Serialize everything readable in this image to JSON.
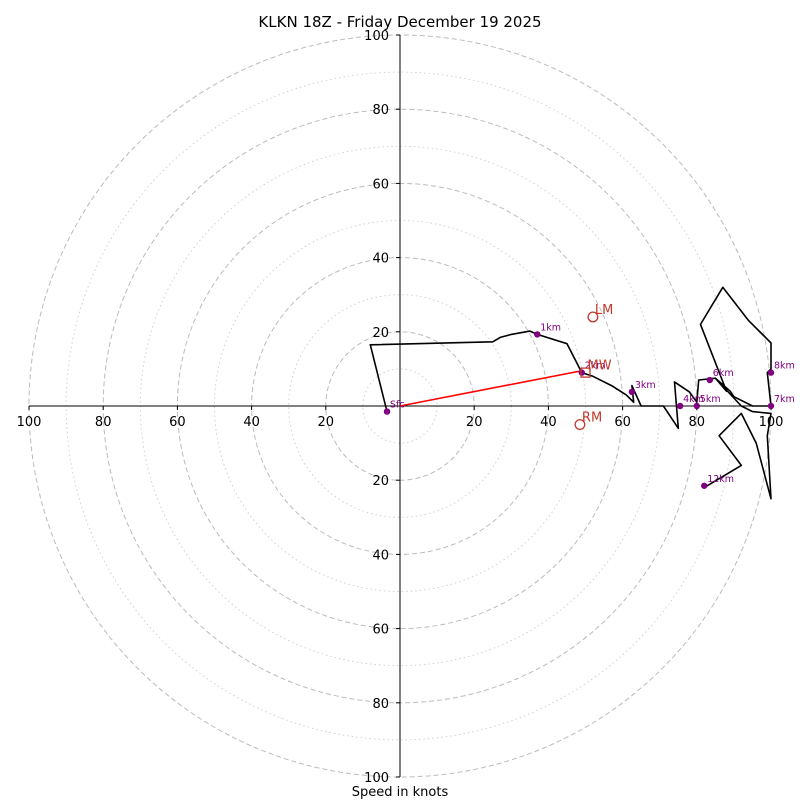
{
  "chart_data": {
    "type": "scatter",
    "subtype": "hodograph",
    "title": "KLKN 18Z - Friday December 19 2025",
    "xlabel": "Speed in knots",
    "xlim": [
      -100,
      100
    ],
    "ylim": [
      -100,
      100
    ],
    "x_tick_labels": [
      "100",
      "80",
      "60",
      "40",
      "20",
      "20",
      "40",
      "60",
      "80",
      "100"
    ],
    "x_tick_values": [
      -100,
      -80,
      -60,
      -40,
      -20,
      20,
      40,
      60,
      80,
      100
    ],
    "y_tick_labels": [
      "100",
      "80",
      "60",
      "40",
      "20",
      "20",
      "40",
      "60",
      "80",
      "100"
    ],
    "y_tick_values": [
      100,
      80,
      60,
      40,
      20,
      -20,
      -40,
      -60,
      -80,
      -100
    ],
    "rings_major": [
      20,
      40,
      60,
      80,
      100
    ],
    "rings_minor": [
      10,
      30,
      50,
      70,
      90
    ],
    "grid": true,
    "colors": {
      "trace": "#000000",
      "mean_wind": "#ff0000",
      "height_markers": "#800080",
      "motion_markers": "#c0392b",
      "grid": "#bbbbbb",
      "axes": "#000000"
    },
    "hodograph_trace": [
      [
        -3.5,
        -1.5
      ],
      [
        -8,
        16.5
      ],
      [
        25,
        17.3
      ],
      [
        27,
        18.5
      ],
      [
        30,
        19.3
      ],
      [
        35,
        20.2
      ],
      [
        37,
        19.3
      ],
      [
        45,
        16.8
      ],
      [
        49,
        9
      ],
      [
        52,
        8
      ],
      [
        57,
        5.5
      ],
      [
        61,
        3
      ],
      [
        63,
        1
      ],
      [
        62.5,
        5.5
      ],
      [
        65,
        0
      ],
      [
        71,
        0
      ],
      [
        75,
        -6
      ],
      [
        74,
        6.5
      ],
      [
        78,
        3.8
      ],
      [
        80,
        1
      ],
      [
        80.5,
        7
      ],
      [
        85,
        7.5
      ],
      [
        89,
        4
      ],
      [
        90,
        2.5
      ],
      [
        95,
        0
      ],
      [
        100,
        0
      ],
      [
        99,
        9
      ],
      [
        100,
        10
      ],
      [
        100,
        17
      ],
      [
        94,
        23
      ],
      [
        87,
        32
      ],
      [
        81,
        22
      ],
      [
        88,
        4
      ],
      [
        85,
        7.5
      ],
      [
        92,
        0
      ],
      [
        95,
        -1.5
      ],
      [
        100,
        -2
      ],
      [
        99,
        -8
      ],
      [
        100,
        -25
      ],
      [
        96,
        -10
      ],
      [
        92,
        -2
      ],
      [
        86,
        -8
      ],
      [
        92,
        -16
      ],
      [
        82,
        -22
      ]
    ],
    "height_points": [
      {
        "label": "Sfc",
        "x": -3.5,
        "y": -1.5
      },
      {
        "label": "1km",
        "x": 37,
        "y": 19.3
      },
      {
        "label": "2km",
        "x": 49,
        "y": 9
      },
      {
        "label": "3km",
        "x": 62.5,
        "y": 3.8
      },
      {
        "label": "4km",
        "x": 75.5,
        "y": 0
      },
      {
        "label": "5km",
        "x": 80,
        "y": 0
      },
      {
        "label": "6km",
        "x": 83.5,
        "y": 7
      },
      {
        "label": "7km",
        "x": 100,
        "y": 0
      },
      {
        "label": "8km",
        "x": 100,
        "y": 9
      },
      {
        "label": "12km",
        "x": 82,
        "y": -21.5
      }
    ],
    "mean_wind": {
      "x": 49,
      "y": 9.5
    },
    "storm_motion": [
      {
        "label": "LM",
        "x": 52,
        "y": 24
      },
      {
        "label": "MW",
        "x": 50,
        "y": 9
      },
      {
        "label": "RM",
        "x": 48.5,
        "y": -5
      }
    ]
  }
}
